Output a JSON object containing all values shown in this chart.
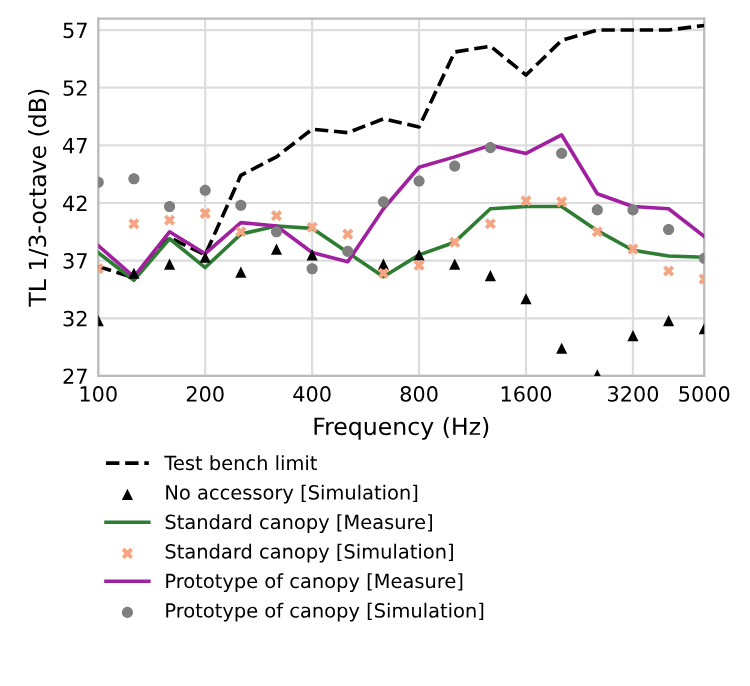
{
  "chart_data": {
    "type": "line",
    "xlabel": "Frequency (Hz)",
    "ylabel": "TL 1/3-octave (dB)",
    "categories": [
      "100",
      null,
      null,
      "200",
      null,
      null,
      "400",
      null,
      null,
      "800",
      null,
      null,
      "1600",
      null,
      null,
      "3200",
      null,
      "5000"
    ],
    "ylim": [
      27,
      58
    ],
    "yticks": [
      27,
      32,
      37,
      42,
      47,
      52,
      57
    ],
    "grid": true,
    "legend": "bottom",
    "series": [
      {
        "name": "Test bench limit",
        "line_style": "dashed",
        "marker": "none",
        "color": "#000000",
        "values": [
          36.5,
          35.5,
          39,
          37.5,
          44.4,
          46.0,
          48.4,
          48.1,
          49.3,
          48.6,
          55.1,
          55.6,
          53.1,
          56.1,
          57.0,
          57.0,
          57.0,
          57.4
        ]
      },
      {
        "name": "No accessory [Simulation]",
        "type": "scatter",
        "marker": "triangle",
        "color": "#000000",
        "values": [
          31.8,
          35.9,
          36.7,
          37.3,
          36.0,
          38.0,
          37.5,
          null,
          36.7,
          37.5,
          36.7,
          35.7,
          33.7,
          29.4,
          27.1,
          30.5,
          31.8,
          31.1
        ]
      },
      {
        "name": "Standard canopy [Measure]",
        "line_style": "solid",
        "marker": "none",
        "color": "#2e7d32",
        "values": [
          37.7,
          35.3,
          38.9,
          36.4,
          39.3,
          40.0,
          39.8,
          37.7,
          35.6,
          37.5,
          38.6,
          41.5,
          41.7,
          41.7,
          39.6,
          37.9,
          37.4,
          37.3
        ]
      },
      {
        "name": "Standard canopy [Simulation]",
        "type": "scatter",
        "marker": "cross",
        "color": "#f4a582",
        "values": [
          36.3,
          40.2,
          40.5,
          41.1,
          39.5,
          40.9,
          39.9,
          39.3,
          35.9,
          36.6,
          38.6,
          40.2,
          42.2,
          42.1,
          39.5,
          38.0,
          36.1,
          35.4
        ]
      },
      {
        "name": "Prototype of canopy [Measure]",
        "line_style": "solid",
        "marker": "none",
        "color": "#a020a0",
        "values": [
          38.3,
          35.6,
          39.5,
          37.6,
          40.3,
          40.0,
          37.7,
          36.9,
          41.5,
          45.1,
          46.0,
          47.0,
          46.3,
          47.9,
          42.8,
          41.7,
          41.5,
          39.1
        ]
      },
      {
        "name": "Prototype of canopy [Simulation]",
        "type": "scatter",
        "marker": "circle",
        "color": "#7f7f7f",
        "values": [
          43.8,
          44.1,
          41.7,
          43.1,
          41.8,
          39.5,
          36.3,
          37.8,
          42.1,
          43.9,
          45.2,
          46.8,
          null,
          46.3,
          41.4,
          41.4,
          39.7,
          37.2
        ]
      }
    ]
  }
}
